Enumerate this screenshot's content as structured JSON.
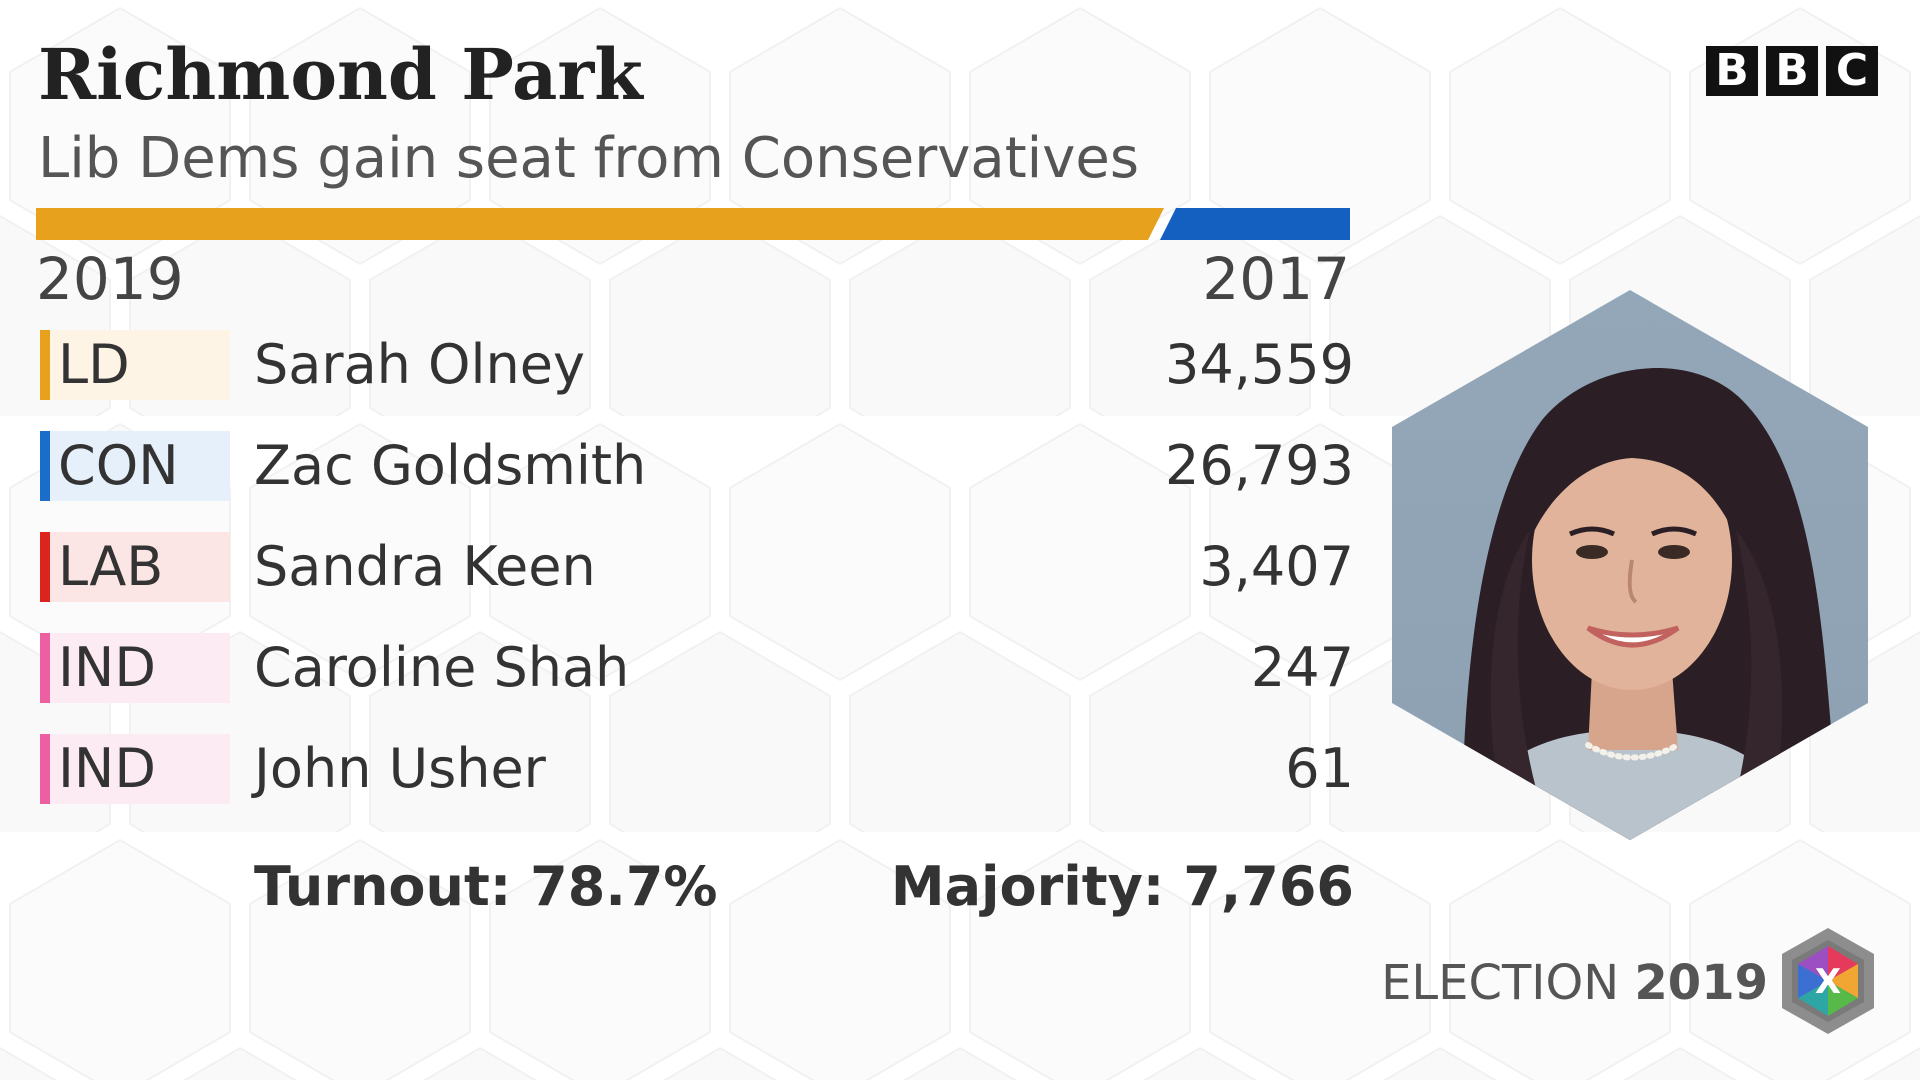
{
  "header": {
    "title": "Richmond Park",
    "subtitle": "Lib Dems gain seat from Conservatives"
  },
  "gain_bar": {
    "new_winner_color": "#e8a11c",
    "old_winner_color": "#1360c0"
  },
  "years": {
    "left": "2019",
    "right": "2017"
  },
  "candidates": [
    {
      "party": "LD",
      "name": "Sarah Olney",
      "votes": "34,559",
      "color": "#e8a11c",
      "tint": "#fdf4e6"
    },
    {
      "party": "CON",
      "name": "Zac Goldsmith",
      "votes": "26,793",
      "color": "#1a6ec9",
      "tint": "#e6f0fa"
    },
    {
      "party": "LAB",
      "name": "Sandra Keen",
      "votes": "3,407",
      "color": "#dc241f",
      "tint": "#fbe5e5"
    },
    {
      "party": "IND",
      "name": "Caroline Shah",
      "votes": "247",
      "color": "#ec5fa0",
      "tint": "#fdebf3"
    },
    {
      "party": "IND",
      "name": "John Usher",
      "votes": "61",
      "color": "#ec5fa0",
      "tint": "#fdebf3"
    }
  ],
  "footer": {
    "turnout": "Turnout: 78.7%",
    "majority": "Majority: 7,766"
  },
  "branding": {
    "bbc_letters": [
      "B",
      "B",
      "C"
    ],
    "election_word": "ELECTION",
    "election_year": "2019",
    "logo_mark": "X"
  },
  "icons": {
    "portrait": "winning-candidate-portrait-icon",
    "logo": "election-2019-hexagon-icon"
  }
}
